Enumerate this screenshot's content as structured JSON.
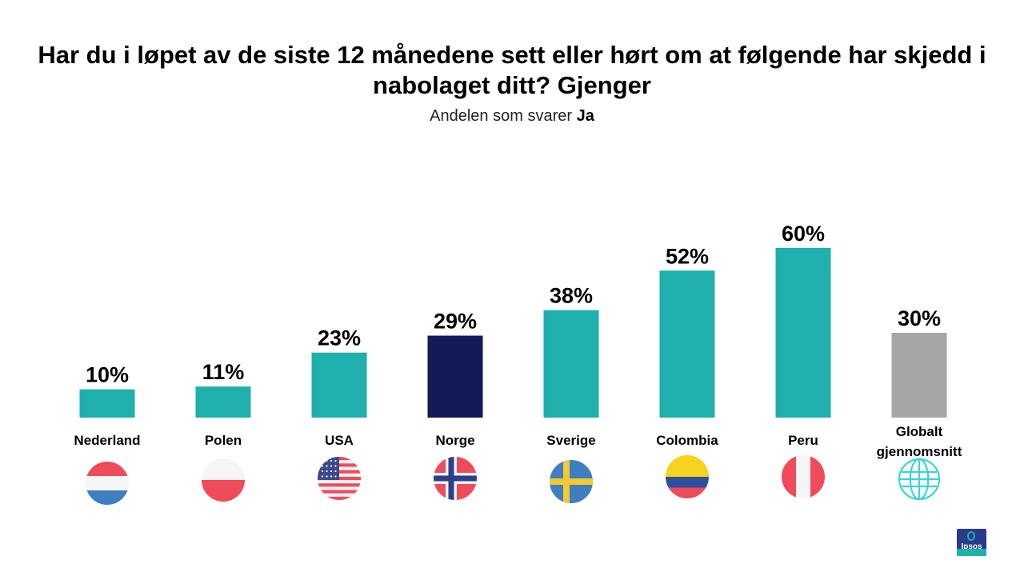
{
  "chart_data": {
    "type": "bar",
    "title": "Har du i løpet av de siste 12 månedene sett eller hørt om at følgende har skjedd i nabolaget ditt? Gjenger",
    "subtitle_prefix": "Andelen som svarer",
    "subtitle_emphasis": "Ja",
    "categories": [
      "Nederland",
      "Polen",
      "USA",
      "Norge",
      "Sverige",
      "Colombia",
      "Peru",
      "Globalt gjennomsnitt"
    ],
    "values": [
      10,
      11,
      23,
      29,
      38,
      52,
      60,
      30
    ],
    "value_labels": [
      "10%",
      "11%",
      "23%",
      "29%",
      "38%",
      "52%",
      "60%",
      "30%"
    ],
    "ylim": [
      0,
      60
    ],
    "bar_colors": [
      "#1fb0ad",
      "#1fb0ad",
      "#1fb0ad",
      "#131a57",
      "#1fb0ad",
      "#1fb0ad",
      "#1fb0ad",
      "#a6a6a6"
    ],
    "icons": [
      "flag-netherlands-icon",
      "flag-poland-icon",
      "flag-usa-icon",
      "flag-norway-icon",
      "flag-sweden-icon",
      "flag-colombia-icon",
      "flag-peru-icon",
      "globe-icon"
    ],
    "xlabel": "",
    "ylabel": ""
  },
  "logo": {
    "text": "Ipsos"
  }
}
